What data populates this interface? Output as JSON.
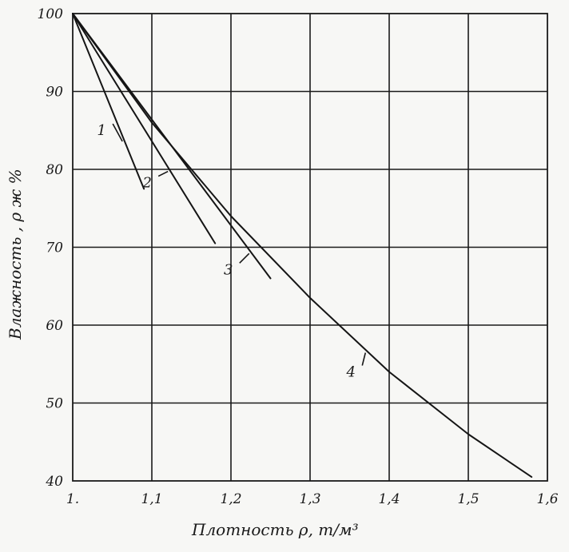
{
  "chart_data": {
    "type": "line",
    "xlabel": "Плотность  ρ,  т/м³",
    "ylabel": "Влажность , ρ ж %",
    "xlim": [
      1.0,
      1.6
    ],
    "ylim": [
      40,
      100
    ],
    "x_ticks": [
      1.0,
      1.1,
      1.2,
      1.3,
      1.4,
      1.5,
      1.6
    ],
    "x_tick_labels": [
      "1.",
      "1,1",
      "1,2",
      "1,3",
      "1,4",
      "1,5",
      "1,6"
    ],
    "y_ticks": [
      40,
      50,
      60,
      70,
      80,
      90,
      100
    ],
    "y_tick_labels": [
      "40",
      "50",
      "60",
      "70",
      "80",
      "90",
      "100"
    ],
    "grid": true,
    "series": [
      {
        "name": "1",
        "x": [
          1.0,
          1.09
        ],
        "y": [
          100,
          77.5
        ]
      },
      {
        "name": "2",
        "x": [
          1.0,
          1.18
        ],
        "y": [
          100,
          70.5
        ]
      },
      {
        "name": "3",
        "x": [
          1.0,
          1.25
        ],
        "y": [
          100,
          66.0
        ]
      },
      {
        "name": "4",
        "x": [
          1.0,
          1.1,
          1.2,
          1.3,
          1.4,
          1.5,
          1.58
        ],
        "y": [
          100,
          86.0,
          74.0,
          63.5,
          54.0,
          46.0,
          40.5
        ]
      }
    ]
  }
}
